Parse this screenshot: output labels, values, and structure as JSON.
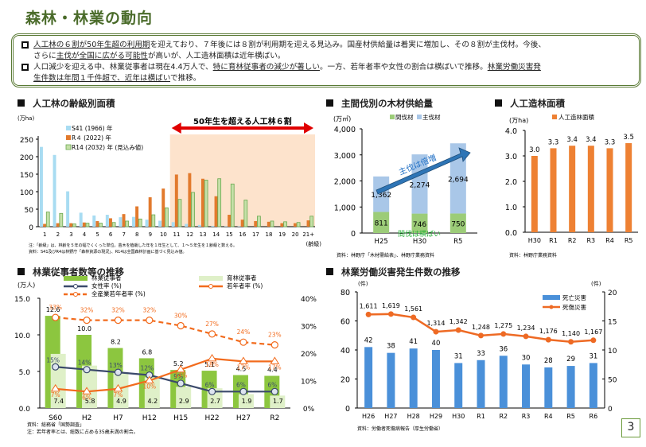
{
  "page": {
    "title": "森林・林業の動向",
    "page_number": "3"
  },
  "summary": {
    "bullets": [
      {
        "segments": [
          {
            "text": "人工林の６割が50年生超の利用期",
            "u": true
          },
          {
            "text": "を迎えており、７年後には８割が利用期を迎える見込み。国産材供給量は着実に増加し、その８割が主伐材。今後、",
            "u": false
          },
          {
            "text": "\nさらに",
            "u": false
          },
          {
            "text": "主伐が全国に広がる可能性",
            "u": true
          },
          {
            "text": "が高いが、人工造林面積は近年横ばい。",
            "u": false
          }
        ]
      },
      {
        "segments": [
          {
            "text": "人口減少を迎える中、林業従事者は現在4.4万人で、",
            "u": false
          },
          {
            "text": "特に育林従事者の減少が著しい",
            "u": true
          },
          {
            "text": "。一方、若年者率や女性の割合は横ばいで推移。",
            "u": false
          },
          {
            "text": "林業労働災害発\n生件数は年間１千件超で、近年は横ばい",
            "u": true
          },
          {
            "text": "で推移。",
            "u": false
          }
        ]
      }
    ]
  },
  "sections": {
    "age_class": "人工林の齢級別面積",
    "supply": "主間伐別の木材供給量",
    "planting": "人工造林面積",
    "workers": "林業従事者数等の推移",
    "accidents": "林業労働災害発生件数の推移"
  },
  "chart_data": [
    {
      "id": "age_class",
      "type": "bar",
      "title": "人工林の齢級別面積",
      "ylabel": "(万ha)",
      "xlabel": "(齢級)",
      "ylim": [
        0,
        250
      ],
      "yticks": [
        0,
        50,
        100,
        150,
        200,
        250
      ],
      "categories": [
        "1",
        "2",
        "3",
        "4",
        "5",
        "6",
        "7",
        "8",
        "9",
        "10",
        "11",
        "12",
        "13",
        "14",
        "15",
        "16",
        "17",
        "18",
        "19",
        "20",
        "21+"
      ],
      "series": [
        {
          "name": "S41 (1966) 年",
          "color": "#a8dcf2",
          "values": [
            228,
            205,
            101,
            40,
            32,
            34,
            27,
            28,
            20,
            17,
            13,
            8,
            5,
            2,
            1,
            1,
            0,
            0,
            0,
            0,
            0
          ]
        },
        {
          "name": "R４ (2022) 年",
          "color": "#e27a2d",
          "values": [
            8,
            10,
            10,
            12,
            16,
            24,
            36,
            58,
            84,
            109,
            149,
            153,
            137,
            87,
            34,
            20,
            16,
            14,
            10,
            10,
            18
          ]
        },
        {
          "name": "R14 (2032) 年 (見込み値)",
          "color": "#c5e0a8",
          "edge": "#6aa84f",
          "values": [
            42,
            38,
            8,
            10,
            10,
            12,
            16,
            22,
            34,
            54,
            78,
            98,
            133,
            137,
            122,
            76,
            30,
            16,
            14,
            12,
            30
          ]
        }
      ],
      "highlight": {
        "label": "50年生を超える人工林６割",
        "from_category": "11",
        "to_category": "21+",
        "color": "#fde3cc",
        "arrow_color": "#e00000"
      },
      "notes": [
        "注：「齢級」は、林齢を５年の幅でくくった単位。苗木を植栽した年を１年生として、１～５年生を１齢級と数える。",
        "資料：S41及びR4は林野庁「森林資源の現況」、R14は全国森林計画に基づく見込み値。"
      ]
    },
    {
      "id": "supply",
      "type": "bar",
      "stacked": true,
      "title": "主間伐別の木材供給量",
      "ylabel": "(万㎥)",
      "ylim": [
        0,
        4000
      ],
      "yticks": [
        "0",
        "1,000",
        "2,000",
        "3,000",
        "4,000"
      ],
      "categories": [
        "H25",
        "H30",
        "R5"
      ],
      "series": [
        {
          "name": "間伐材",
          "color": "#9ccc78",
          "values": [
            811,
            746,
            750
          ],
          "labels": [
            "811",
            "746",
            "750"
          ]
        },
        {
          "name": "主伐材",
          "color": "#a9c7e8",
          "values": [
            1362,
            2274,
            2694
          ],
          "labels": [
            "1,362",
            "2,274",
            "2,694"
          ]
        }
      ],
      "annotations": {
        "arrow_text": "主伐は倍増",
        "flat_text": "間伐は横ばい"
      },
      "source": "資料：林野庁「木材需給表」、林野庁業務資料"
    },
    {
      "id": "planting",
      "type": "bar",
      "title": "人工造林面積",
      "ylabel": "(万ha)",
      "ylim": [
        0,
        4
      ],
      "yticks": [
        "0.0",
        "1.0",
        "2.0",
        "3.0",
        "4.0"
      ],
      "categories": [
        "H30",
        "R1",
        "R2",
        "R3",
        "R4",
        "R5"
      ],
      "series": [
        {
          "name": "人工造林面積",
          "color": "#ee8133",
          "values": [
            3.0,
            3.3,
            3.4,
            3.4,
            3.3,
            3.5
          ],
          "labels": [
            "3.0",
            "3.3",
            "3.4",
            "3.4",
            "3.3",
            "3.5"
          ]
        }
      ],
      "source": "資料：林野庁業務資料"
    },
    {
      "id": "workers",
      "type": "bar",
      "title": "林業従事者数等の推移",
      "ylabel": "(万人)",
      "ylim": [
        0,
        15
      ],
      "yticks": [
        "0.0",
        "5.0",
        "10.0",
        "15.0"
      ],
      "y2lim": [
        0,
        40
      ],
      "y2ticks": [
        "0%",
        "10%",
        "20%",
        "30%",
        "40%"
      ],
      "categories": [
        "S60",
        "H2",
        "H7",
        "H12",
        "H15",
        "H22",
        "H27",
        "R2"
      ],
      "series": [
        {
          "name": "林業従事者",
          "kind": "bar",
          "color": "#8cc63f",
          "values": [
            12.6,
            10.0,
            8.2,
            6.8,
            5.2,
            5.1,
            4.5,
            4.4
          ],
          "labels": [
            "12.6",
            "10.0",
            "8.2",
            "6.8",
            "5.2",
            "5.1",
            "4.5",
            "4.4"
          ]
        },
        {
          "name": "育林従事者",
          "kind": "bar",
          "color": "#dff0c8",
          "values": [
            7.4,
            5.8,
            4.9,
            4.2,
            2.9,
            2.7,
            1.9,
            1.7
          ],
          "labels": [
            "7.4",
            "5.8",
            "4.9",
            "4.2",
            "2.9",
            "2.7",
            "1.9",
            "1.7"
          ]
        },
        {
          "name": "女性率 (%)",
          "kind": "line",
          "axis": "right",
          "color": "#3b4a6b",
          "values": [
            15,
            14,
            13,
            12,
            9,
            6,
            6,
            6
          ],
          "labels": [
            "15%",
            "14%",
            "13%",
            "12%",
            "9%",
            "6%",
            "6%",
            "6%"
          ]
        },
        {
          "name": "若年者率 (%)",
          "kind": "line",
          "axis": "right",
          "color": "#f26b1d",
          "values": [
            7,
            6,
            7,
            10,
            14,
            18,
            17,
            17
          ],
          "labels": [
            "7%",
            "6%",
            "7%",
            "10%",
            "14%",
            "18%",
            "17%",
            "17%"
          ],
          "estimated": {
            "S60": "label illegible in screenshot; value estimated from marker height",
            "H2": "label partly obscured; value estimated"
          }
        },
        {
          "name": "全産業若年者率 (%)",
          "kind": "line",
          "axis": "right",
          "dashed": true,
          "color": "#f26b1d",
          "values": [
            33,
            32,
            32,
            32,
            30,
            27,
            24,
            23
          ],
          "labels": [
            "33%",
            "32%",
            "32%",
            "32%",
            "30%",
            "27%",
            "24%",
            "23%"
          ]
        }
      ],
      "source": "資料：総務省「国勢調査」",
      "note": "注：若年者率とは、総数に占める35歳未満の割合。"
    },
    {
      "id": "accidents",
      "type": "bar",
      "title": "林業労働災害発生件数の推移",
      "ylabel": "(件)",
      "ylim": [
        0,
        80
      ],
      "yticks": [
        "0",
        "20",
        "40",
        "60",
        "80"
      ],
      "y2label": "(件)",
      "y2lim": [
        0,
        2000
      ],
      "y2ticks": [
        "0",
        "500",
        "1000",
        "1500",
        "2000"
      ],
      "categories": [
        "H26",
        "H27",
        "H28",
        "H29",
        "H30",
        "R1",
        "R2",
        "R3",
        "R4",
        "R5",
        "R6"
      ],
      "series": [
        {
          "name": "死亡災害",
          "kind": "bar",
          "color": "#4a90d9",
          "values": [
            42,
            38,
            41,
            40,
            31,
            33,
            36,
            30,
            28,
            29,
            31
          ]
        },
        {
          "name": "死傷災害",
          "kind": "line",
          "axis": "right",
          "color": "#ee6a24",
          "values": [
            1611,
            1619,
            1561,
            1314,
            1342,
            1248,
            1275,
            1234,
            1176,
            1140,
            1167
          ],
          "labels": [
            "1,611",
            "1,619",
            "1,561",
            "1,314",
            "1,342",
            "1,248",
            "1,275",
            "1,234",
            "1,176",
            "1,140",
            "1,167"
          ]
        }
      ],
      "source": "資料：労働者死傷病報告（厚生労働省）"
    }
  ]
}
